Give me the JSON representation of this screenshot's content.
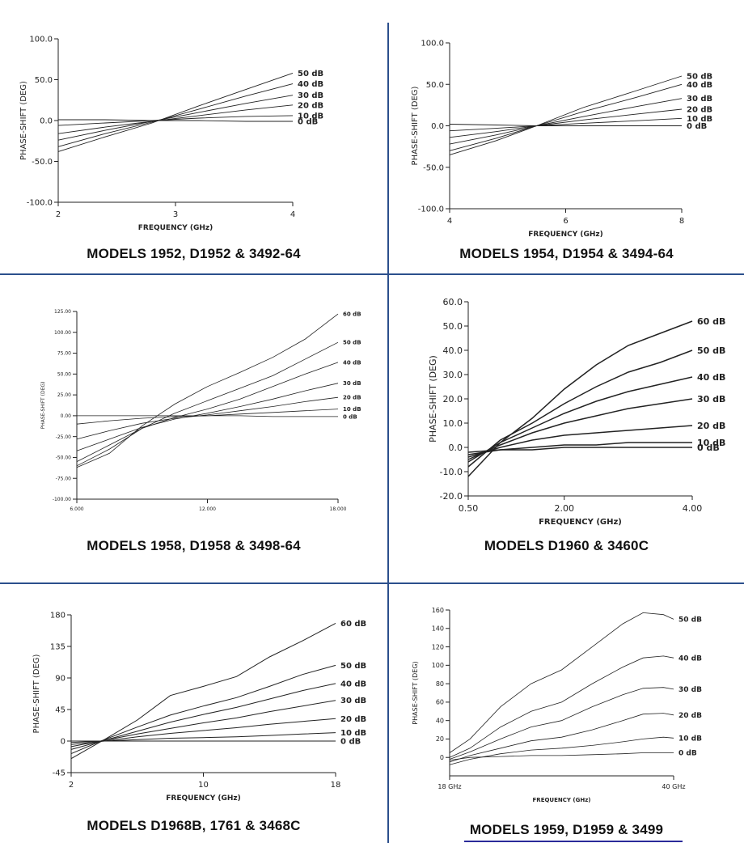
{
  "chart_data": [
    {
      "type": "line",
      "caption": "MODELS  1952, D1952 & 3492-64",
      "xlabel": "FREQUENCY (GHz)",
      "ylabel": "PHASE-SHIFT (DEG)",
      "xlim": [
        2,
        4
      ],
      "ylim": [
        -100,
        100
      ],
      "xticks": [
        2,
        3,
        4
      ],
      "xtick_labels": [
        "2",
        "3",
        "4"
      ],
      "yticks": [
        -100,
        -50,
        0,
        50,
        100
      ],
      "ytick_labels": [
        "-100.0",
        "-50.0",
        "0.0",
        "50.0",
        "100.0"
      ],
      "series": [
        {
          "name": "50 dB",
          "x": [
            2,
            2.4,
            2.8,
            3.2,
            3.6,
            4
          ],
          "y": [
            -38,
            -20,
            -3,
            18,
            38,
            58
          ]
        },
        {
          "name": "40 dB",
          "x": [
            2,
            2.4,
            2.8,
            3.2,
            3.6,
            4
          ],
          "y": [
            -32,
            -16,
            -2,
            14,
            30,
            45
          ]
        },
        {
          "name": "30 dB",
          "x": [
            2,
            2.4,
            2.8,
            3.2,
            3.6,
            4
          ],
          "y": [
            -24,
            -12,
            -1,
            10,
            21,
            31
          ]
        },
        {
          "name": "20 dB",
          "x": [
            2,
            2.4,
            2.8,
            3.2,
            3.6,
            4
          ],
          "y": [
            -16,
            -8,
            -1,
            6,
            13,
            19
          ]
        },
        {
          "name": "10 dB",
          "x": [
            2,
            2.4,
            2.8,
            3.2,
            3.6,
            4
          ],
          "y": [
            -6,
            -3,
            0,
            3,
            5,
            6
          ]
        },
        {
          "name": "0 dB",
          "x": [
            2,
            2.4,
            2.8,
            3.2,
            3.6,
            4
          ],
          "y": [
            1,
            1,
            0,
            0,
            -1,
            -1
          ]
        }
      ]
    },
    {
      "type": "line",
      "caption": "MODELS  1954, D1954 & 3494-64",
      "xlabel": "FREQUENCY (GHz)",
      "ylabel": "PHASE-SHIFT (DEG)",
      "xlim": [
        4,
        8
      ],
      "ylim": [
        -100,
        100
      ],
      "xticks": [
        4,
        6,
        8
      ],
      "xtick_labels": [
        "4",
        "6",
        "8"
      ],
      "yticks": [
        -100,
        -50,
        0,
        50,
        100
      ],
      "ytick_labels": [
        "-100.0",
        "-50.0",
        "0.0",
        "50.0",
        "100.0"
      ],
      "series": [
        {
          "name": "50 dB",
          "x": [
            4,
            4.8,
            5.5,
            6.3,
            7.2,
            8
          ],
          "y": [
            -35,
            -18,
            0,
            22,
            42,
            60
          ]
        },
        {
          "name": "40 dB",
          "x": [
            4,
            4.8,
            5.5,
            6.3,
            7.2,
            8
          ],
          "y": [
            -30,
            -15,
            0,
            17,
            34,
            50
          ]
        },
        {
          "name": "30 dB",
          "x": [
            4,
            4.8,
            5.5,
            6.3,
            7.2,
            8
          ],
          "y": [
            -22,
            -11,
            0,
            11,
            23,
            33
          ]
        },
        {
          "name": "20 dB",
          "x": [
            4,
            4.8,
            5.5,
            6.3,
            7.2,
            8
          ],
          "y": [
            -14,
            -7,
            0,
            7,
            14,
            20
          ]
        },
        {
          "name": "10 dB",
          "x": [
            4,
            4.8,
            5.5,
            6.3,
            7.2,
            8
          ],
          "y": [
            -6,
            -3,
            0,
            3,
            6,
            9
          ]
        },
        {
          "name": "0 dB",
          "x": [
            4,
            4.8,
            5.5,
            6.3,
            7.2,
            8
          ],
          "y": [
            2,
            1,
            0,
            0,
            0,
            0
          ]
        }
      ]
    },
    {
      "type": "line",
      "caption": "MODELS  1958, D1958 & 3498-64",
      "xlabel": "",
      "ylabel": "PHASE-SHIFT (DEG)",
      "xlim": [
        6,
        18
      ],
      "ylim": [
        -100,
        125
      ],
      "xticks": [
        6,
        12,
        18
      ],
      "xtick_labels": [
        "6.000",
        "12.000",
        "18.000"
      ],
      "yticks": [
        -100,
        -75,
        -50,
        -25,
        0,
        25,
        50,
        75,
        100,
        125
      ],
      "ytick_labels": [
        "-100.00",
        "-75.00",
        "-50.00",
        "-25.00",
        "0.00",
        "25.00",
        "50.00",
        "75.00",
        "100.00",
        "125.00"
      ],
      "series": [
        {
          "name": "60 dB",
          "x": [
            6,
            7.5,
            9,
            10.5,
            12,
            13.5,
            15,
            16.5,
            18
          ],
          "y": [
            -62,
            -45,
            -12,
            14,
            35,
            52,
            70,
            92,
            122
          ]
        },
        {
          "name": "50 dB",
          "x": [
            6,
            7.5,
            9,
            10.5,
            12,
            13.5,
            15,
            16.5,
            18
          ],
          "y": [
            -60,
            -40,
            -15,
            3,
            18,
            33,
            48,
            68,
            88
          ]
        },
        {
          "name": "40 dB",
          "x": [
            6,
            7.5,
            9,
            10.5,
            12,
            13.5,
            15,
            16.5,
            18
          ],
          "y": [
            -55,
            -35,
            -15,
            -2,
            8,
            20,
            35,
            50,
            64
          ]
        },
        {
          "name": "30 dB",
          "x": [
            6,
            7.5,
            9,
            10.5,
            12,
            13.5,
            15,
            16.5,
            18
          ],
          "y": [
            -42,
            -28,
            -14,
            -4,
            3,
            11,
            20,
            30,
            39
          ]
        },
        {
          "name": "20 dB",
          "x": [
            6,
            7.5,
            9,
            10.5,
            12,
            13.5,
            15,
            16.5,
            18
          ],
          "y": [
            -28,
            -18,
            -9,
            -3,
            1,
            6,
            11,
            17,
            22
          ]
        },
        {
          "name": "10 dB",
          "x": [
            6,
            7.5,
            9,
            10.5,
            12,
            13.5,
            15,
            16.5,
            18
          ],
          "y": [
            -10,
            -6,
            -3,
            -1,
            0,
            2,
            4,
            6,
            8
          ]
        },
        {
          "name": "0 dB",
          "x": [
            6,
            7.5,
            9,
            10.5,
            12,
            13.5,
            15,
            16.5,
            18
          ],
          "y": [
            0,
            0,
            0,
            0,
            0,
            0,
            -1,
            -1,
            -1
          ]
        }
      ]
    },
    {
      "type": "line",
      "caption": "MODELS  D1960 & 3460C",
      "xlabel": "FREQUENCY (GHz)",
      "ylabel": "PHASE-SHIFT (DEG)",
      "xlim": [
        0.5,
        4.0
      ],
      "ylim": [
        -20,
        60
      ],
      "xticks": [
        0.5,
        2.0,
        4.0
      ],
      "xtick_labels": [
        "0.50",
        "2.00",
        "4.00"
      ],
      "yticks": [
        -20,
        -10,
        0,
        10,
        20,
        30,
        40,
        50,
        60
      ],
      "ytick_labels": [
        "-20.0",
        "-10.0",
        "0.0",
        "10.0",
        "20.0",
        "30.0",
        "40.0",
        "50.0",
        "60.0"
      ],
      "series": [
        {
          "name": "60 dB",
          "x": [
            0.5,
            1.0,
            1.5,
            2.0,
            2.5,
            3.0,
            3.5,
            4.0
          ],
          "y": [
            -12,
            2,
            12,
            24,
            34,
            42,
            47,
            52
          ]
        },
        {
          "name": "50 dB",
          "x": [
            0.5,
            1.0,
            1.5,
            2.0,
            2.5,
            3.0,
            3.5,
            4.0
          ],
          "y": [
            -8,
            3,
            10,
            18,
            25,
            31,
            35,
            40
          ]
        },
        {
          "name": "40 dB",
          "x": [
            0.5,
            1.0,
            1.5,
            2.0,
            2.5,
            3.0,
            3.5,
            4.0
          ],
          "y": [
            -6,
            2,
            8,
            14,
            19,
            23,
            26,
            29
          ]
        },
        {
          "name": "30 dB",
          "x": [
            0.5,
            1.0,
            1.5,
            2.0,
            2.5,
            3.0,
            3.5,
            4.0
          ],
          "y": [
            -5,
            1,
            6,
            10,
            13,
            16,
            18,
            20
          ]
        },
        {
          "name": "20 dB",
          "x": [
            0.5,
            1.0,
            1.5,
            2.0,
            2.5,
            3.0,
            3.5,
            4.0
          ],
          "y": [
            -4,
            0,
            3,
            5,
            6,
            7,
            8,
            9
          ]
        },
        {
          "name": "10 dB",
          "x": [
            0.5,
            1.0,
            1.5,
            2.0,
            2.5,
            3.0,
            3.5,
            4.0
          ],
          "y": [
            -3,
            -1,
            0,
            1,
            1,
            2,
            2,
            2
          ]
        },
        {
          "name": "0 dB",
          "x": [
            0.5,
            1.0,
            1.5,
            2.0,
            2.5,
            3.0,
            3.5,
            4.0
          ],
          "y": [
            -2,
            -1,
            -1,
            0,
            0,
            0,
            0,
            0
          ]
        }
      ]
    },
    {
      "type": "line",
      "caption": "MODELS  D1968B, 1761 & 3468C",
      "xlabel": "FREQUENCY (GHz)",
      "ylabel": "PHASE-SHIFT (DEG)",
      "xlim": [
        2,
        18
      ],
      "ylim": [
        -45,
        180
      ],
      "xticks": [
        2,
        10,
        18
      ],
      "xtick_labels": [
        "2",
        "10",
        "18"
      ],
      "yticks": [
        -45,
        0,
        45,
        90,
        135,
        180
      ],
      "ytick_labels": [
        "-45",
        "0",
        "45",
        "90",
        "135",
        "180"
      ],
      "series": [
        {
          "name": "60 dB",
          "x": [
            2,
            4,
            6,
            8,
            10,
            12,
            14,
            16,
            18
          ],
          "y": [
            -25,
            2,
            30,
            65,
            78,
            92,
            120,
            143,
            168
          ]
        },
        {
          "name": "50 dB",
          "x": [
            2,
            4,
            6,
            8,
            10,
            12,
            14,
            16,
            18
          ],
          "y": [
            -18,
            2,
            20,
            37,
            50,
            62,
            78,
            95,
            108
          ]
        },
        {
          "name": "40 dB",
          "x": [
            2,
            4,
            6,
            8,
            10,
            12,
            14,
            16,
            18
          ],
          "y": [
            -12,
            1,
            14,
            27,
            38,
            48,
            60,
            72,
            82
          ]
        },
        {
          "name": "30 dB",
          "x": [
            2,
            4,
            6,
            8,
            10,
            12,
            14,
            16,
            18
          ],
          "y": [
            -8,
            1,
            10,
            18,
            26,
            33,
            42,
            50,
            58
          ]
        },
        {
          "name": "20 dB",
          "x": [
            2,
            4,
            6,
            8,
            10,
            12,
            14,
            16,
            18
          ],
          "y": [
            -5,
            0,
            6,
            11,
            15,
            19,
            24,
            28,
            32
          ]
        },
        {
          "name": "10 dB",
          "x": [
            2,
            4,
            6,
            8,
            10,
            12,
            14,
            16,
            18
          ],
          "y": [
            -2,
            0,
            2,
            4,
            5,
            6,
            8,
            10,
            12
          ]
        },
        {
          "name": "0 dB",
          "x": [
            2,
            4,
            6,
            8,
            10,
            12,
            14,
            16,
            18
          ],
          "y": [
            0,
            0,
            0,
            0,
            0,
            0,
            0,
            0,
            0
          ]
        }
      ]
    },
    {
      "type": "line",
      "caption": "MODELS  1959, D1959 & 3499",
      "xlabel": "FREQUENCY (GHz)",
      "ylabel": "PHASE-SHIFT (DEG)",
      "xlim": [
        18,
        40
      ],
      "ylim": [
        -20,
        160
      ],
      "xticks": [
        18,
        40
      ],
      "xtick_labels": [
        "18 GHz",
        "40 GHz"
      ],
      "yticks": [
        0,
        20,
        40,
        60,
        80,
        100,
        120,
        140,
        160
      ],
      "ytick_labels": [
        "0",
        "20",
        "40",
        "60",
        "80",
        "100",
        "120",
        "140",
        "160"
      ],
      "series": [
        {
          "name": "50 dB",
          "x": [
            18,
            20,
            23,
            26,
            29,
            32,
            35,
            37,
            39,
            40
          ],
          "y": [
            5,
            20,
            55,
            80,
            95,
            120,
            145,
            157,
            155,
            150
          ]
        },
        {
          "name": "40 dB",
          "x": [
            18,
            20,
            23,
            26,
            29,
            32,
            35,
            37,
            39,
            40
          ],
          "y": [
            0,
            10,
            33,
            50,
            60,
            80,
            98,
            108,
            110,
            108
          ]
        },
        {
          "name": "30 dB",
          "x": [
            18,
            20,
            23,
            26,
            29,
            32,
            35,
            37,
            39,
            40
          ],
          "y": [
            -2,
            6,
            20,
            33,
            40,
            55,
            68,
            75,
            76,
            74
          ]
        },
        {
          "name": "20 dB",
          "x": [
            18,
            20,
            23,
            26,
            29,
            32,
            35,
            37,
            39,
            40
          ],
          "y": [
            -5,
            2,
            10,
            18,
            22,
            30,
            40,
            47,
            48,
            46
          ]
        },
        {
          "name": "10 dB",
          "x": [
            18,
            20,
            23,
            26,
            29,
            32,
            35,
            37,
            39,
            40
          ],
          "y": [
            -8,
            -2,
            4,
            8,
            10,
            13,
            17,
            20,
            22,
            21
          ]
        },
        {
          "name": "0 dB",
          "x": [
            18,
            20,
            23,
            26,
            29,
            32,
            35,
            37,
            39,
            40
          ],
          "y": [
            -3,
            0,
            1,
            2,
            2,
            3,
            4,
            5,
            5,
            5
          ]
        }
      ]
    }
  ]
}
